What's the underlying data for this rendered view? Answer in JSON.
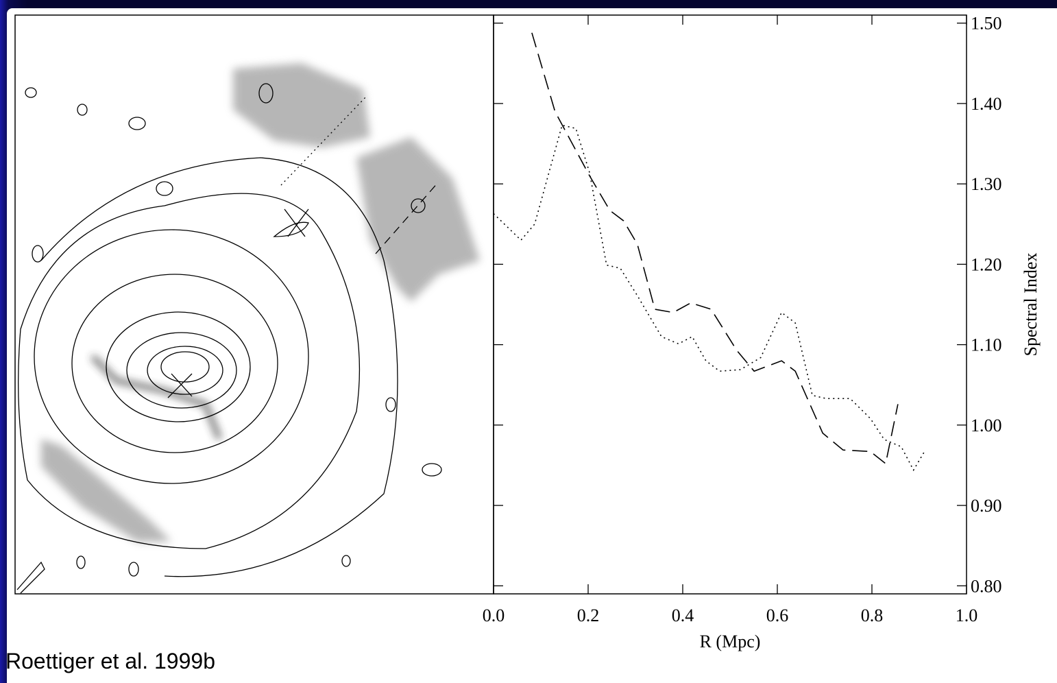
{
  "caption": "Roettiger et al. 1999b",
  "chart_data": {
    "type": "line",
    "xlabel": "R (Mpc)",
    "ylabel": "Spectral Index",
    "y_axis_side": "right",
    "xlim": [
      0,
      1
    ],
    "xticks": [
      {
        "value": 0,
        "label": "0.0"
      },
      0.2,
      0.4,
      0.6,
      0.8,
      {
        "value": 1,
        "label": "1.0"
      }
    ],
    "ylim": [
      0.79,
      1.51
    ],
    "yticks": [
      {
        "value": 0.8,
        "label": "0.80"
      },
      {
        "value": 0.9,
        "label": "0.90"
      },
      {
        "value": 1.0,
        "label": "1.00"
      },
      {
        "value": 1.1,
        "label": "1.10"
      },
      {
        "value": 1.2,
        "label": "1.20"
      },
      {
        "value": 1.3,
        "label": "1.30"
      },
      {
        "value": 1.4,
        "label": "1.40"
      },
      {
        "value": 1.5,
        "label": "1.50"
      }
    ],
    "series": [
      {
        "color": "#000000",
        "line_style": "dashed",
        "x": [
          0.081,
          0.13,
          0.203,
          0.246,
          0.275,
          0.304,
          0.341,
          0.38,
          0.417,
          0.46,
          0.514,
          0.551,
          0.609,
          0.638,
          0.696,
          0.739,
          0.797,
          0.829,
          0.855
        ],
        "values": [
          1.488,
          1.39,
          1.31,
          1.267,
          1.254,
          1.225,
          1.144,
          1.14,
          1.152,
          1.144,
          1.093,
          1.067,
          1.08,
          1.067,
          0.99,
          0.969,
          0.967,
          0.952,
          1.026
        ]
      },
      {
        "color": "#000000",
        "line_style": "dotted",
        "x": [
          0,
          0.058,
          0.087,
          0.145,
          0.174,
          0.203,
          0.239,
          0.268,
          0.304,
          0.355,
          0.391,
          0.42,
          0.449,
          0.478,
          0.522,
          0.565,
          0.609,
          0.638,
          0.674,
          0.703,
          0.754,
          0.797,
          0.826,
          0.862,
          0.888,
          0.913
        ],
        "values": [
          1.263,
          1.23,
          1.25,
          1.373,
          1.369,
          1.314,
          1.199,
          1.195,
          1.161,
          1.11,
          1.101,
          1.11,
          1.08,
          1.067,
          1.069,
          1.084,
          1.14,
          1.127,
          1.037,
          1.033,
          1.033,
          1.008,
          0.982,
          0.973,
          0.944,
          0.969
        ]
      }
    ]
  }
}
